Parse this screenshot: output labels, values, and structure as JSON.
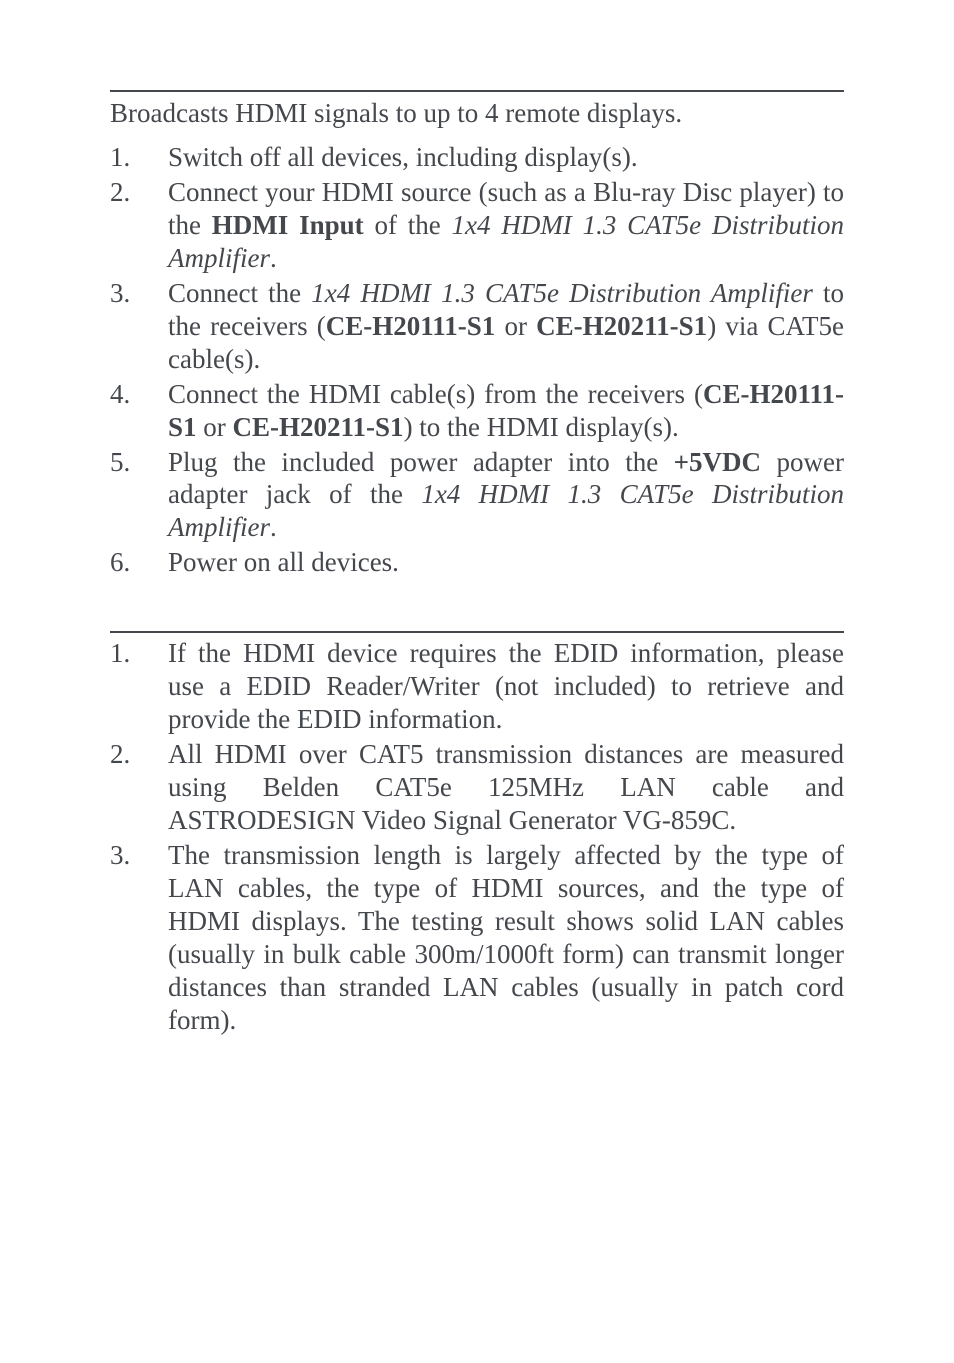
{
  "section1": {
    "intro": "Broadcasts HDMI signals to up to 4 remote displays.",
    "items": [
      {
        "num": "1.",
        "parts": [
          {
            "t": "Switch off all devices, including display(s)."
          }
        ]
      },
      {
        "num": "2.",
        "parts": [
          {
            "t": "Connect your HDMI source (such as a Blu-ray Disc player) to the "
          },
          {
            "t": "HDMI Input",
            "b": true
          },
          {
            "t": " of the "
          },
          {
            "t": "1x4 HDMI 1.3 CAT5e Distribution Amplifier",
            "i": true
          },
          {
            "t": "."
          }
        ]
      },
      {
        "num": "3.",
        "parts": [
          {
            "t": "Connect the "
          },
          {
            "t": "1x4 HDMI 1.3 CAT5e Distribution Amplifier",
            "i": true
          },
          {
            "t": " to the receivers ("
          },
          {
            "t": "CE-H20111-S1",
            "b": true
          },
          {
            "t": " or "
          },
          {
            "t": "CE-H20211-S1",
            "b": true
          },
          {
            "t": ") via CAT5e cable(s)."
          }
        ]
      },
      {
        "num": "4.",
        "parts": [
          {
            "t": "Connect the HDMI cable(s) from the receivers ("
          },
          {
            "t": "CE-H20111-S1",
            "b": true
          },
          {
            "t": " or "
          },
          {
            "t": "CE-H20211-S1",
            "b": true
          },
          {
            "t": ") to the HDMI display(s)."
          }
        ]
      },
      {
        "num": "5.",
        "parts": [
          {
            "t": "Plug the included power adapter into the "
          },
          {
            "t": "+5VDC",
            "b": true
          },
          {
            "t": " power adapter jack of the "
          },
          {
            "t": "1x4 HDMI 1.3 CAT5e Distribution Amplifier",
            "i": true
          },
          {
            "t": "."
          }
        ]
      },
      {
        "num": "6.",
        "parts": [
          {
            "t": "Power on all devices."
          }
        ]
      }
    ]
  },
  "section2": {
    "items": [
      {
        "num": "1.",
        "parts": [
          {
            "t": "If the HDMI device requires the EDID information, please use a EDID Reader/Writer (not included) to retrieve and provide the EDID information."
          }
        ]
      },
      {
        "num": "2.",
        "parts": [
          {
            "t": "All HDMI over CAT5 transmission distances are measured using Belden CAT5e 125MHz LAN cable and ASTRODESIGN Video Signal Generator VG-859C."
          }
        ]
      },
      {
        "num": "3.",
        "parts": [
          {
            "t": "The transmission length is largely affected by the type of LAN cables, the type of HDMI sources, and the type of HDMI displays.  The testing result shows solid LAN cables (usually in bulk cable 300m/1000ft form) can transmit longer distances than stranded LAN cables (usually in patch cord form)."
          }
        ]
      }
    ]
  }
}
